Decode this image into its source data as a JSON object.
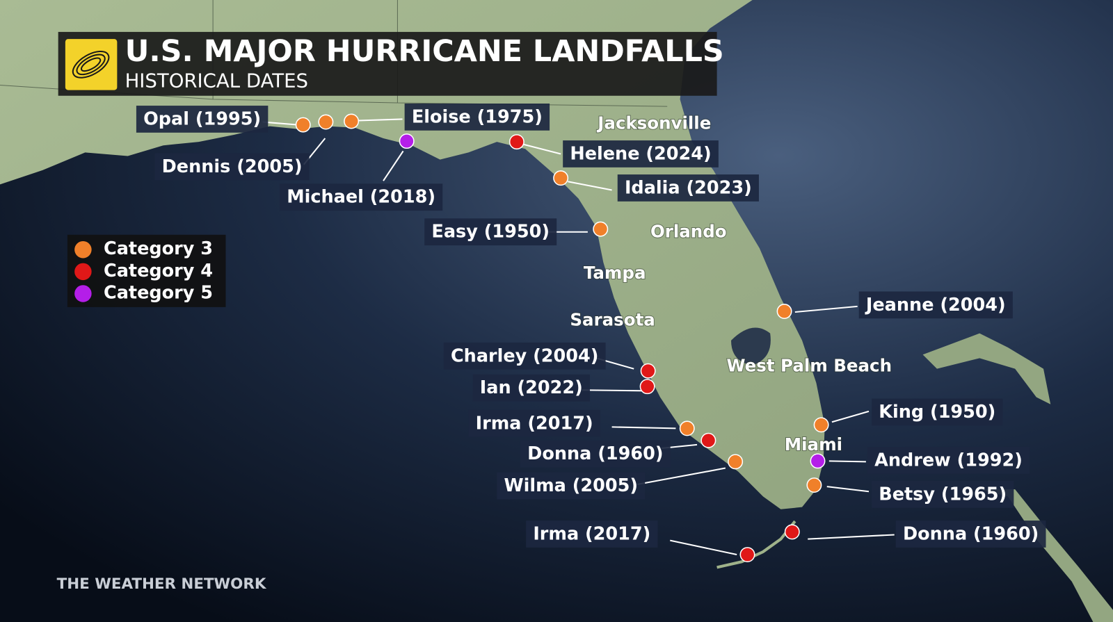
{
  "header": {
    "title": "U.S. MAJOR HURRICANE LANDFALLS",
    "subtitle": "HISTORICAL DATES"
  },
  "legend": [
    {
      "label": "Category 3",
      "color": "#f0802a"
    },
    {
      "label": "Category 4",
      "color": "#e01818"
    },
    {
      "label": "Category 5",
      "color": "#b41ee8"
    }
  ],
  "cities": [
    "Jacksonville",
    "Orlando",
    "Tampa",
    "Sarasota",
    "West Palm Beach",
    "Miami"
  ],
  "landfalls": [
    {
      "label": "Opal (1995)",
      "category": "Category 3"
    },
    {
      "label": "Dennis (2005)",
      "category": "Category 3"
    },
    {
      "label": "Eloise (1975)",
      "category": "Category 3"
    },
    {
      "label": "Michael (2018)",
      "category": "Category 5"
    },
    {
      "label": "Helene (2024)",
      "category": "Category 4"
    },
    {
      "label": "Idalia (2023)",
      "category": "Category 3"
    },
    {
      "label": "Easy (1950)",
      "category": "Category 3"
    },
    {
      "label": "Jeanne (2004)",
      "category": "Category 3"
    },
    {
      "label": "Charley (2004)",
      "category": "Category 4"
    },
    {
      "label": "Ian (2022)",
      "category": "Category 4"
    },
    {
      "label": "Irma (2017)",
      "category": "Category 3"
    },
    {
      "label": "Donna (1960)",
      "category": "Category 4"
    },
    {
      "label": "Wilma (2005)",
      "category": "Category 3"
    },
    {
      "label": "King (1950)",
      "category": "Category 3"
    },
    {
      "label": "Andrew (1992)",
      "category": "Category 5"
    },
    {
      "label": "Betsy (1965)",
      "category": "Category 3"
    },
    {
      "label": "Donna (1960)",
      "category": "Category 4"
    },
    {
      "label": "Irma (2017)",
      "category": "Category 4"
    }
  ],
  "credit": "THE WEATHER NETWORK"
}
